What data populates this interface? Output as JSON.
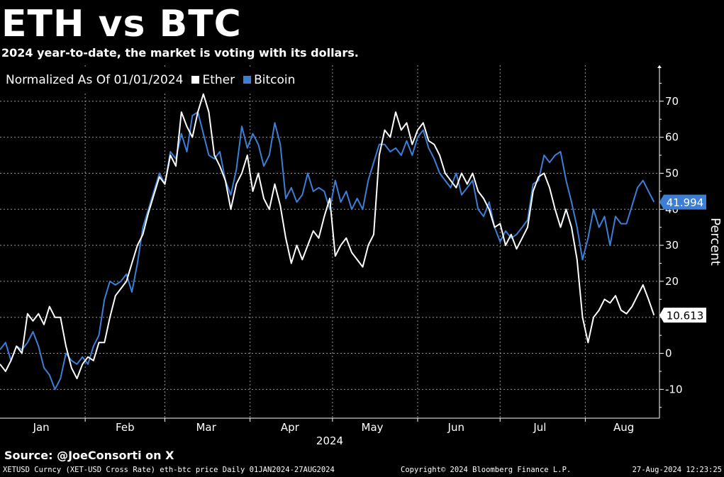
{
  "header": {
    "title": "ETH vs BTC",
    "subtitle": "2024 year-to-date, the market is voting with its dollars."
  },
  "legend": {
    "prefix": "Normalized As Of 01/01/2024",
    "items": [
      {
        "label": "Ether",
        "color": "#ffffff"
      },
      {
        "label": "Bitcoin",
        "color": "#3d7fd6"
      }
    ]
  },
  "source": "Source:  @JoeConsorti on X",
  "footer": {
    "left": "XETUSD Curncy (XET-USD Cross Rate) eth-btc price  Daily 01JAN2024-27AUG2024",
    "center": "Copyright© 2024 Bloomberg Finance L.P.",
    "right": "27-Aug-2024 12:23:25"
  },
  "chart_data": {
    "type": "line",
    "title": "ETH vs BTC",
    "subtitle": "2024 year-to-date, the market is voting with its dollars.",
    "xlabel": "2024",
    "ylabel": "Percent",
    "grid": true,
    "legend_position": "top-left",
    "ylim": [
      -18,
      80
    ],
    "xlim": [
      0,
      240
    ],
    "y_ticks": [
      -10,
      0,
      10,
      20,
      30,
      40,
      50,
      60,
      70
    ],
    "x_ticks": [
      {
        "label": "Jan",
        "x": 15
      },
      {
        "label": "Feb",
        "x": 45.5
      },
      {
        "label": "Mar",
        "x": 75
      },
      {
        "label": "Apr",
        "x": 105.5
      },
      {
        "label": "May",
        "x": 135.5
      },
      {
        "label": "Jun",
        "x": 166
      },
      {
        "label": "Jul",
        "x": 196.5
      },
      {
        "label": "Aug",
        "x": 227
      }
    ],
    "series": [
      {
        "name": "Ether",
        "color": "#ffffff",
        "last_value_label": "10.613",
        "points": [
          [
            0,
            -3
          ],
          [
            2,
            -5
          ],
          [
            4,
            -2
          ],
          [
            6,
            2
          ],
          [
            8,
            0
          ],
          [
            10,
            11
          ],
          [
            12,
            9
          ],
          [
            14,
            11
          ],
          [
            16,
            8
          ],
          [
            18,
            13
          ],
          [
            20,
            10
          ],
          [
            22,
            10
          ],
          [
            24,
            2
          ],
          [
            26,
            -4
          ],
          [
            28,
            -7
          ],
          [
            30,
            -3
          ],
          [
            32,
            -1
          ],
          [
            34,
            -2
          ],
          [
            36,
            3
          ],
          [
            38,
            3
          ],
          [
            40,
            10
          ],
          [
            42,
            16
          ],
          [
            44,
            18
          ],
          [
            46,
            20
          ],
          [
            48,
            25
          ],
          [
            50,
            30
          ],
          [
            52,
            33
          ],
          [
            54,
            39
          ],
          [
            56,
            44
          ],
          [
            58,
            49
          ],
          [
            60,
            47
          ],
          [
            62,
            55
          ],
          [
            64,
            52
          ],
          [
            66,
            67
          ],
          [
            68,
            63
          ],
          [
            70,
            60
          ],
          [
            72,
            67
          ],
          [
            74,
            72
          ],
          [
            76,
            67
          ],
          [
            78,
            55
          ],
          [
            80,
            52
          ],
          [
            82,
            48
          ],
          [
            84,
            40
          ],
          [
            86,
            47
          ],
          [
            88,
            50
          ],
          [
            90,
            55
          ],
          [
            92,
            45
          ],
          [
            94,
            50
          ],
          [
            96,
            43
          ],
          [
            98,
            40
          ],
          [
            100,
            47
          ],
          [
            102,
            41
          ],
          [
            104,
            32
          ],
          [
            106,
            25
          ],
          [
            108,
            30
          ],
          [
            110,
            26
          ],
          [
            112,
            30
          ],
          [
            114,
            34
          ],
          [
            116,
            32
          ],
          [
            118,
            38
          ],
          [
            120,
            43
          ],
          [
            122,
            27
          ],
          [
            124,
            30
          ],
          [
            126,
            32
          ],
          [
            128,
            28
          ],
          [
            130,
            26
          ],
          [
            132,
            24
          ],
          [
            134,
            30
          ],
          [
            136,
            33
          ],
          [
            138,
            55
          ],
          [
            140,
            62
          ],
          [
            142,
            60
          ],
          [
            144,
            67
          ],
          [
            146,
            62
          ],
          [
            148,
            64
          ],
          [
            150,
            58
          ],
          [
            152,
            62
          ],
          [
            154,
            64
          ],
          [
            156,
            59
          ],
          [
            158,
            58
          ],
          [
            160,
            55
          ],
          [
            162,
            50
          ],
          [
            164,
            48
          ],
          [
            166,
            46
          ],
          [
            168,
            50
          ],
          [
            170,
            47
          ],
          [
            172,
            50
          ],
          [
            174,
            45
          ],
          [
            176,
            43
          ],
          [
            178,
            40
          ],
          [
            180,
            35
          ],
          [
            182,
            36
          ],
          [
            184,
            30
          ],
          [
            186,
            33
          ],
          [
            188,
            29
          ],
          [
            190,
            32
          ],
          [
            192,
            35
          ],
          [
            194,
            45
          ],
          [
            196,
            49
          ],
          [
            198,
            50
          ],
          [
            200,
            46
          ],
          [
            202,
            40
          ],
          [
            204,
            35
          ],
          [
            206,
            40
          ],
          [
            208,
            35
          ],
          [
            210,
            26
          ],
          [
            212,
            10
          ],
          [
            214,
            3
          ],
          [
            216,
            10
          ],
          [
            218,
            12
          ],
          [
            220,
            15
          ],
          [
            222,
            14
          ],
          [
            224,
            16
          ],
          [
            226,
            12
          ],
          [
            228,
            11
          ],
          [
            230,
            13
          ],
          [
            232,
            16
          ],
          [
            234,
            19
          ],
          [
            236,
            15
          ],
          [
            238,
            10.6
          ]
        ]
      },
      {
        "name": "Bitcoin",
        "color": "#3d7fd6",
        "last_value_label": "41.994",
        "points": [
          [
            0,
            1
          ],
          [
            2,
            3
          ],
          [
            4,
            -2
          ],
          [
            6,
            2
          ],
          [
            8,
            1
          ],
          [
            10,
            3
          ],
          [
            12,
            6
          ],
          [
            14,
            2
          ],
          [
            16,
            -4
          ],
          [
            18,
            -6
          ],
          [
            20,
            -10
          ],
          [
            22,
            -7
          ],
          [
            24,
            0
          ],
          [
            26,
            -2
          ],
          [
            28,
            -3
          ],
          [
            30,
            -1
          ],
          [
            32,
            -3
          ],
          [
            34,
            2
          ],
          [
            36,
            5
          ],
          [
            38,
            15
          ],
          [
            40,
            20
          ],
          [
            42,
            19
          ],
          [
            44,
            20
          ],
          [
            46,
            22
          ],
          [
            48,
            17
          ],
          [
            50,
            25
          ],
          [
            52,
            35
          ],
          [
            54,
            40
          ],
          [
            56,
            45
          ],
          [
            58,
            50
          ],
          [
            60,
            47
          ],
          [
            62,
            56
          ],
          [
            64,
            54
          ],
          [
            66,
            61
          ],
          [
            68,
            56
          ],
          [
            70,
            66
          ],
          [
            72,
            67
          ],
          [
            74,
            61
          ],
          [
            76,
            55
          ],
          [
            78,
            54
          ],
          [
            80,
            56
          ],
          [
            82,
            48
          ],
          [
            84,
            44
          ],
          [
            86,
            51
          ],
          [
            88,
            63
          ],
          [
            90,
            57
          ],
          [
            92,
            61
          ],
          [
            94,
            58
          ],
          [
            96,
            52
          ],
          [
            98,
            55
          ],
          [
            100,
            64
          ],
          [
            102,
            58
          ],
          [
            104,
            43
          ],
          [
            106,
            46
          ],
          [
            108,
            42
          ],
          [
            110,
            44
          ],
          [
            112,
            50
          ],
          [
            114,
            45
          ],
          [
            116,
            46
          ],
          [
            118,
            45
          ],
          [
            120,
            40
          ],
          [
            122,
            48
          ],
          [
            124,
            42
          ],
          [
            126,
            45
          ],
          [
            128,
            40
          ],
          [
            130,
            43
          ],
          [
            132,
            40
          ],
          [
            134,
            48
          ],
          [
            136,
            53
          ],
          [
            138,
            58
          ],
          [
            140,
            58
          ],
          [
            142,
            56
          ],
          [
            144,
            57
          ],
          [
            146,
            55
          ],
          [
            148,
            59
          ],
          [
            150,
            55
          ],
          [
            152,
            60
          ],
          [
            154,
            62
          ],
          [
            156,
            57
          ],
          [
            158,
            54
          ],
          [
            160,
            50
          ],
          [
            162,
            48
          ],
          [
            164,
            46
          ],
          [
            166,
            50
          ],
          [
            168,
            44
          ],
          [
            170,
            46
          ],
          [
            172,
            48
          ],
          [
            174,
            40
          ],
          [
            176,
            38
          ],
          [
            178,
            42
          ],
          [
            180,
            35
          ],
          [
            182,
            31
          ],
          [
            184,
            34
          ],
          [
            186,
            32
          ],
          [
            188,
            33
          ],
          [
            190,
            35
          ],
          [
            192,
            37
          ],
          [
            194,
            47
          ],
          [
            196,
            48
          ],
          [
            198,
            55
          ],
          [
            200,
            53
          ],
          [
            202,
            55
          ],
          [
            204,
            56
          ],
          [
            206,
            48
          ],
          [
            208,
            42
          ],
          [
            210,
            35
          ],
          [
            212,
            26
          ],
          [
            214,
            32
          ],
          [
            216,
            40
          ],
          [
            218,
            35
          ],
          [
            220,
            38
          ],
          [
            222,
            30
          ],
          [
            224,
            38
          ],
          [
            226,
            36
          ],
          [
            228,
            36
          ],
          [
            230,
            41
          ],
          [
            232,
            46
          ],
          [
            234,
            48
          ],
          [
            236,
            45
          ],
          [
            238,
            42
          ]
        ]
      }
    ]
  }
}
